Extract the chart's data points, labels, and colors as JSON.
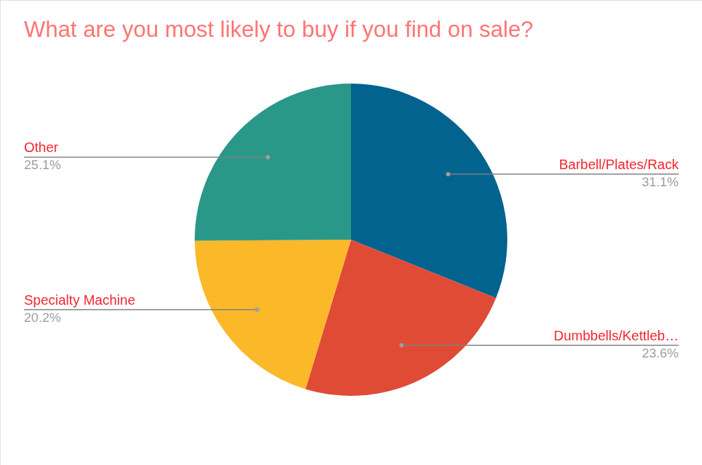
{
  "chart_data": {
    "type": "pie",
    "title": "What are you most likely to buy if you find on sale?",
    "categories": [
      "Barbell/Plates/Rack",
      "Dumbbells/Kettleb…",
      "Specialty Machine",
      "Other"
    ],
    "values": [
      31.1,
      23.6,
      20.2,
      25.1
    ],
    "colors": [
      "#02638f",
      "#e04b36",
      "#fbb829",
      "#2a9889"
    ],
    "value_labels": [
      "31.1%",
      "23.6%",
      "20.2%",
      "25.1%"
    ]
  }
}
